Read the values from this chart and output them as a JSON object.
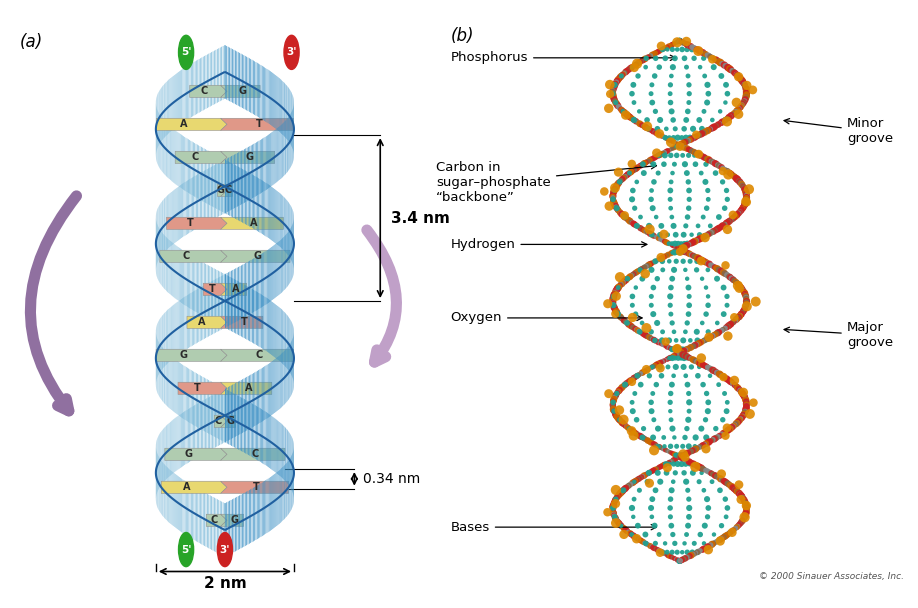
{
  "title_a": "(a)",
  "title_b": "(b)",
  "bg_color": "#ffffff",
  "strand1_color": "#3a8fc4",
  "strand2_color": "#7ab8d8",
  "strand_edge": "#2060a0",
  "base_pairs": [
    {
      "left": "C",
      "right": "G",
      "type": "CG"
    },
    {
      "left": "A",
      "right": "T",
      "type": "AT"
    },
    {
      "left": "C",
      "right": "G",
      "type": "CG"
    },
    {
      "left": "G",
      "right": "C",
      "type": "GC"
    },
    {
      "left": "T",
      "right": "A",
      "type": "TA"
    },
    {
      "left": "C",
      "right": "G",
      "type": "CG"
    },
    {
      "left": "T",
      "right": "A",
      "type": "TA"
    },
    {
      "left": "A",
      "right": "T",
      "type": "AT"
    },
    {
      "left": "G",
      "right": "C",
      "type": "GC"
    },
    {
      "left": "T",
      "right": "A",
      "type": "TA"
    },
    {
      "left": "C",
      "right": "G",
      "type": "CG"
    },
    {
      "left": "G",
      "right": "C",
      "type": "GC"
    },
    {
      "left": "A",
      "right": "T",
      "type": "AT"
    },
    {
      "left": "C",
      "right": "G",
      "type": "CG"
    }
  ],
  "color_CG": "#b0ccb0",
  "color_GC": "#b0ccb0",
  "color_AT_left": "#e8d870",
  "color_AT_right": "#e09888",
  "color_TA_left": "#e09888",
  "color_TA_right": "#e8d870",
  "label_34nm": "3.4 nm",
  "label_034nm": "0.34 nm",
  "label_2nm": "2 nm",
  "five_prime_color": "#28a428",
  "three_prime_color": "#cc2222",
  "arrow_left_color": "#9070a0",
  "arrow_right_color": "#c0a0c8",
  "copyright": "© 2000 Sinauer Associates, Inc."
}
